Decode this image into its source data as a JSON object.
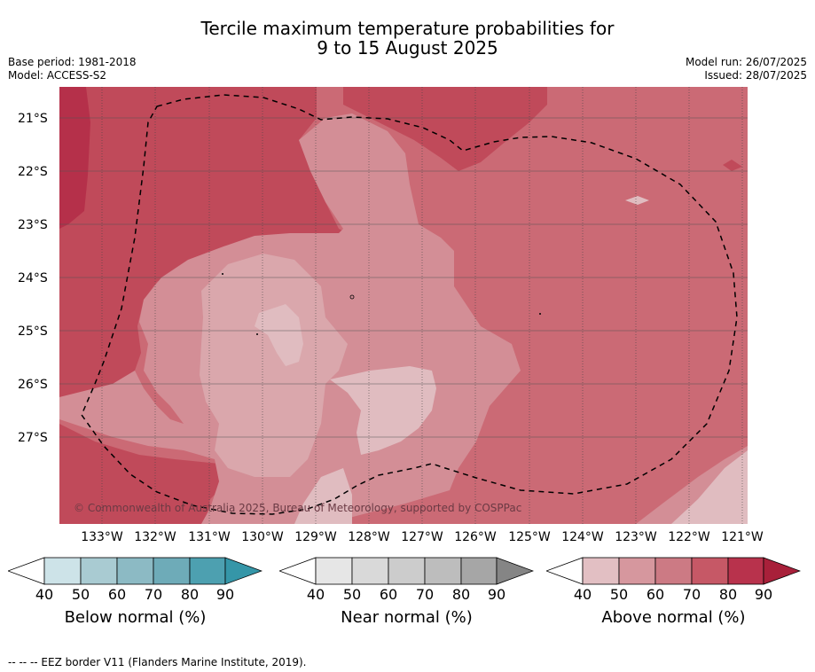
{
  "title": {
    "line1": "Tercile maximum temperature probabilities for",
    "line2": "9 to 15 August 2025"
  },
  "meta": {
    "base_period": "Base period: 1981-2018",
    "model": "Model: ACCESS-S2",
    "model_run": "Model run: 26/07/2025",
    "issued": "Issued: 28/07/2025"
  },
  "map": {
    "lat_labels": [
      "21°S",
      "22°S",
      "23°S",
      "24°S",
      "25°S",
      "26°S",
      "27°S"
    ],
    "lon_labels": [
      "133°W",
      "132°W",
      "131°W",
      "130°W",
      "129°W",
      "128°W",
      "127°W",
      "126°W",
      "125°W",
      "124°W",
      "123°W",
      "122°W",
      "121°W"
    ],
    "copyright": "© Commonwealth of Australia 2025, Bureau of Meteorology, supported by COSPPac",
    "colors": {
      "above_90": "#b5304a",
      "above_80": "#c04a5a",
      "above_70": "#cb6a75",
      "above_60": "#d38e96",
      "above_50": "#e0bcc0"
    }
  },
  "colorbars": [
    {
      "title": "Below normal (%)",
      "ticks": [
        "40",
        "50",
        "60",
        "70",
        "80",
        "90"
      ],
      "colors": [
        "#cde3e8",
        "#a9cbd2",
        "#8cbac4",
        "#6eabb8",
        "#4da0b0",
        "#3596a8"
      ]
    },
    {
      "title": "Near normal (%)",
      "ticks": [
        "40",
        "50",
        "60",
        "70",
        "80",
        "90"
      ],
      "colors": [
        "#e6e6e6",
        "#d9d9d9",
        "#cccccc",
        "#bdbdbd",
        "#a6a6a6",
        "#858585"
      ]
    },
    {
      "title": "Above normal (%)",
      "ticks": [
        "40",
        "50",
        "60",
        "70",
        "80",
        "90"
      ],
      "colors": [
        "#e2bfc3",
        "#d6979e",
        "#cc7a84",
        "#c65866",
        "#b8324c",
        "#a8203a"
      ]
    }
  ],
  "footnote": "-- -- -- EEZ border V11 (Flanders Marine Institute, 2019)."
}
